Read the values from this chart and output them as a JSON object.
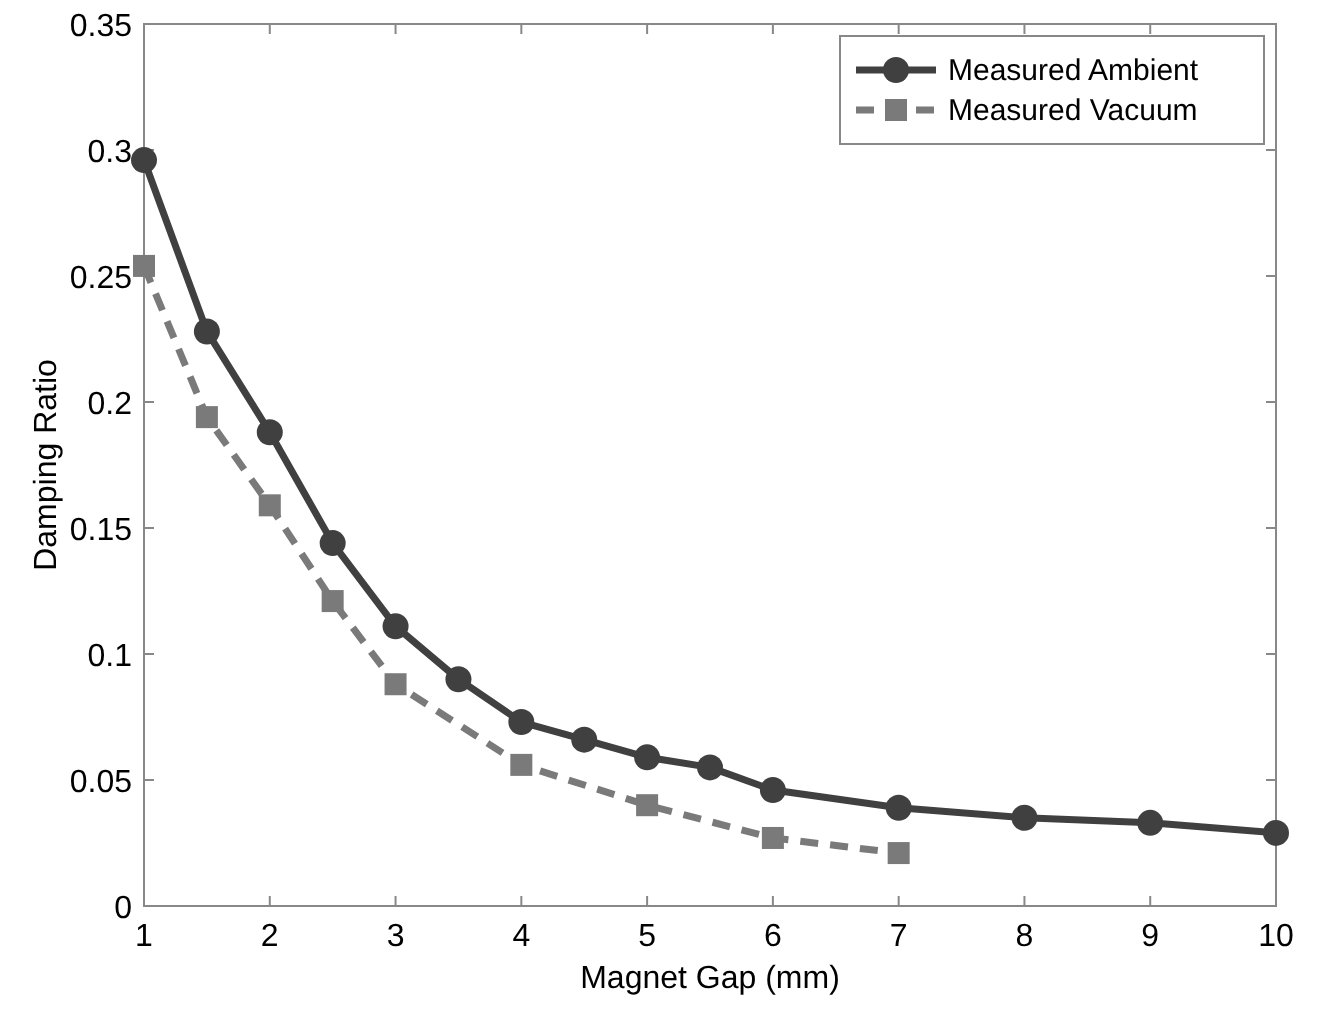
{
  "chart_data": {
    "type": "line",
    "xlabel": "Magnet Gap (mm)",
    "ylabel": "Damping Ratio",
    "xlim": [
      1,
      10
    ],
    "xticks": [
      1,
      2,
      3,
      4,
      5,
      6,
      7,
      8,
      9,
      10
    ],
    "ylim": [
      0,
      0.35
    ],
    "yticks": [
      0,
      0.05,
      0.1,
      0.15,
      0.2,
      0.25,
      0.3,
      0.35
    ],
    "grid": false,
    "legend": "top right",
    "series": [
      {
        "name": "Measured Ambient",
        "color": "#404040",
        "marker": "circle",
        "line_style": "solid",
        "x": [
          1,
          1.5,
          2,
          2.5,
          3,
          3.5,
          4,
          4.5,
          5,
          5.5,
          6,
          7,
          8,
          9,
          10
        ],
        "values": [
          0.296,
          0.228,
          0.188,
          0.144,
          0.111,
          0.09,
          0.073,
          0.066,
          0.059,
          0.055,
          0.046,
          0.039,
          0.035,
          0.033,
          0.029
        ]
      },
      {
        "name": "Measured Vacuum",
        "color": "#7a7a7a",
        "marker": "square",
        "line_style": "dashed",
        "x": [
          1,
          1.5,
          2,
          2.5,
          3,
          4,
          5,
          6,
          7
        ],
        "values": [
          0.254,
          0.194,
          0.159,
          0.121,
          0.088,
          0.056,
          0.04,
          0.027,
          0.021
        ]
      }
    ]
  }
}
